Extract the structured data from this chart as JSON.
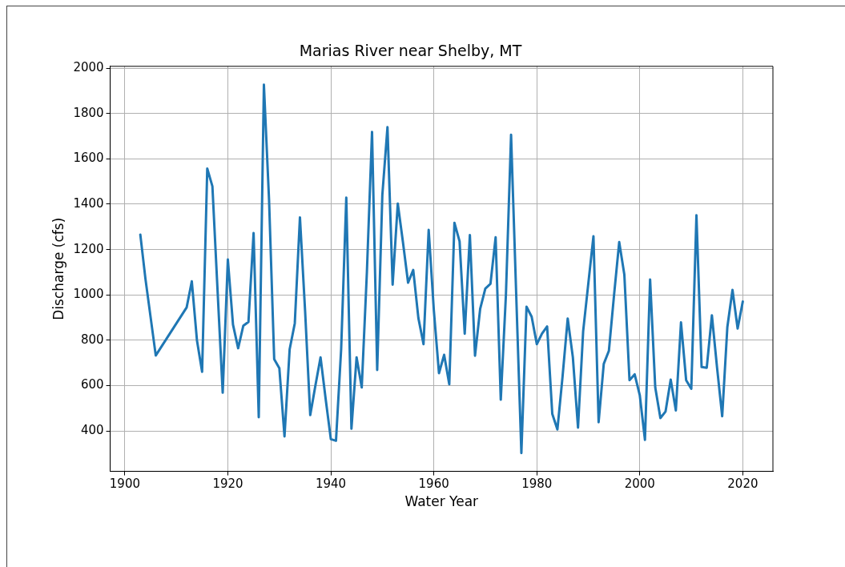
{
  "chart_data": {
    "type": "line",
    "title": "Marias River near Shelby, MT",
    "xlabel": "Water Year",
    "ylabel": "Discharge (cfs)",
    "x": [
      1903,
      1904,
      1906,
      1912,
      1913,
      1914,
      1915,
      1916,
      1917,
      1918,
      1919,
      1920,
      1921,
      1922,
      1923,
      1924,
      1925,
      1926,
      1927,
      1928,
      1929,
      1930,
      1931,
      1932,
      1933,
      1934,
      1935,
      1936,
      1937,
      1938,
      1939,
      1940,
      1941,
      1942,
      1943,
      1944,
      1945,
      1946,
      1947,
      1948,
      1949,
      1950,
      1951,
      1952,
      1953,
      1954,
      1955,
      1956,
      1957,
      1958,
      1959,
      1960,
      1961,
      1962,
      1963,
      1964,
      1965,
      1966,
      1967,
      1968,
      1969,
      1970,
      1971,
      1972,
      1973,
      1974,
      1975,
      1976,
      1977,
      1978,
      1979,
      1980,
      1981,
      1982,
      1983,
      1984,
      1985,
      1986,
      1987,
      1988,
      1989,
      1990,
      1991,
      1992,
      1993,
      1994,
      1995,
      1996,
      1997,
      1998,
      1999,
      2000,
      2001,
      2002,
      2003,
      2004,
      2005,
      2006,
      2007,
      2008,
      2009,
      2010,
      2011,
      2012,
      2013,
      2014,
      2015,
      2016,
      2017,
      2018,
      2019,
      2020
    ],
    "series": [
      {
        "color": "#1f77b4",
        "values": [
          1266,
          1070,
          733,
          945,
          1060,
          800,
          661,
          1557,
          1479,
          1020,
          569,
          1156,
          869,
          765,
          864,
          881,
          1273,
          461,
          1927,
          1420,
          717,
          677,
          376,
          760,
          875,
          1342,
          930,
          470,
          600,
          725,
          540,
          364,
          357,
          760,
          1429,
          410,
          725,
          592,
          1100,
          1719,
          669,
          1440,
          1740,
          1045,
          1403,
          1233,
          1054,
          1110,
          898,
          783,
          1287,
          933,
          655,
          736,
          606,
          1318,
          1236,
          829,
          1264,
          732,
          939,
          1028,
          1049,
          1254,
          538,
          1000,
          1706,
          1000,
          303,
          948,
          904,
          783,
          829,
          861,
          476,
          407,
          640,
          896,
          725,
          415,
          840,
          1050,
          1259,
          439,
          696,
          754,
          1000,
          1233,
          1089,
          624,
          650,
          557,
          361,
          1068,
          592,
          457,
          486,
          627,
          491,
          879,
          624,
          586,
          1351,
          682,
          679,
          910,
          680,
          465,
          858,
          1022,
          852,
          971
        ]
      }
    ],
    "xlim": [
      1897.15,
      2025.85
    ],
    "xticks": [
      1900,
      1920,
      1940,
      1960,
      1980,
      2000,
      2020
    ],
    "ylim": [
      222,
      2008
    ],
    "yticks": [
      400,
      600,
      800,
      1000,
      1200,
      1400,
      1600,
      1800,
      2000
    ],
    "grid": true,
    "marker": "none",
    "line_style": "solid",
    "legend": false
  }
}
